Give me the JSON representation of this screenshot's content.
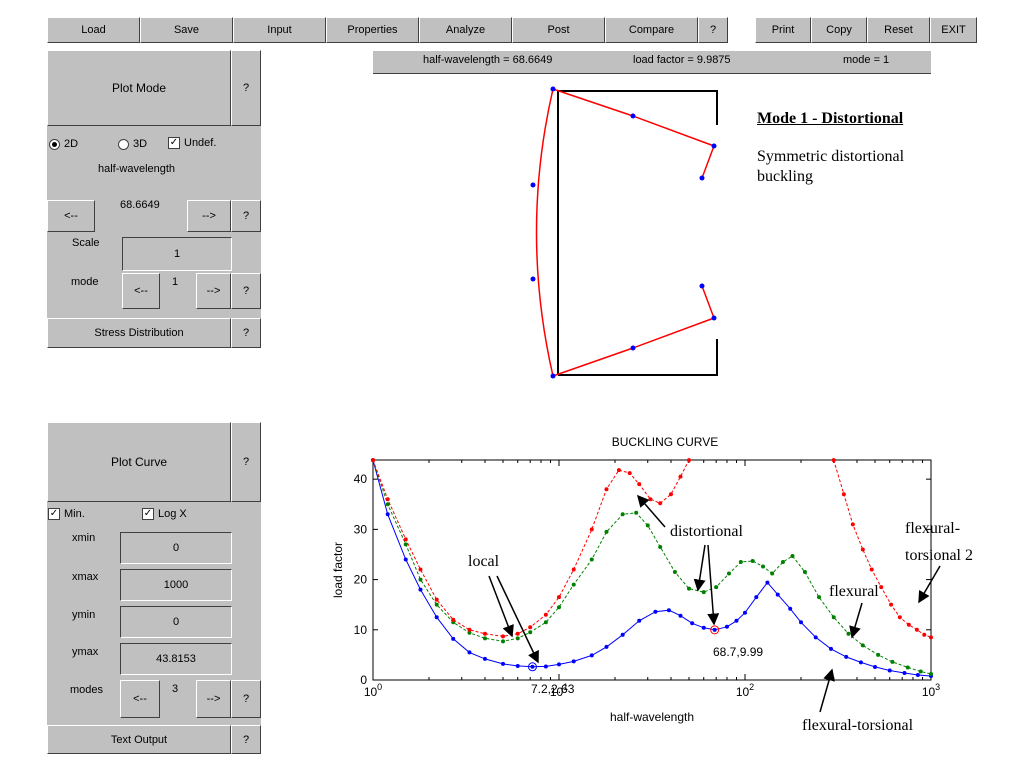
{
  "toolbar": {
    "load": "Load",
    "save": "Save",
    "input": "Input",
    "properties": "Properties",
    "analyze": "Analyze",
    "post": "Post",
    "compare": "Compare",
    "help": "?",
    "print": "Print",
    "copy": "Copy",
    "reset": "Reset",
    "exit": "EXIT"
  },
  "status": {
    "half_wavelength": "half-wavelength = 68.6649",
    "load_factor": "load factor = 9.9875",
    "mode": "mode = 1"
  },
  "plot_mode_panel": {
    "title": "Plot Mode",
    "help": "?",
    "radio_2d": "2D",
    "radio_3d": "3D",
    "undef_label": "Undef.",
    "undef_checked": true,
    "hw_label": "half-wavelength",
    "hw_value": "68.6649",
    "prev": "<--",
    "next": "-->",
    "scale_label": "Scale",
    "scale_value": "1",
    "mode_label": "mode",
    "mode_value": "1",
    "stress_button": "Stress Distribution"
  },
  "plot_curve_panel": {
    "title": "Plot Curve",
    "help": "?",
    "min_label": "Min.",
    "logx_label": "Log X",
    "xmin_label": "xmin",
    "xmin_value": "0",
    "xmax_label": "xmax",
    "xmax_value": "1000",
    "ymin_label": "ymin",
    "ymin_value": "0",
    "ymax_label": "ymax",
    "ymax_value": "43.8153",
    "modes_label": "modes",
    "modes_value": "3",
    "prev": "<--",
    "next": "-->",
    "text_output": "Text Output"
  },
  "mode_shape": {
    "title": "Mode 1 - Distortional",
    "description_line1": "Symmetric distortional",
    "description_line2": "buckling"
  },
  "annotations": {
    "local": "local",
    "distortional": "distortional",
    "flexural": "flexural",
    "flexural_torsional_2_line1": "flexural-",
    "flexural_torsional_2_line2": "torsional 2",
    "flexural_torsional": "flexural-torsional",
    "point_label_min": "7.2,2.63",
    "point_label_sel": "68.7,9.99"
  },
  "colors": {
    "panel": "#c0c0c0",
    "red": "#ff0000",
    "green": "#008000",
    "blue": "#0000ff"
  },
  "chart_data": {
    "type": "line",
    "title": "BUCKLING CURVE",
    "xlabel": "half-wavelength",
    "ylabel": "load factor",
    "xscale": "log",
    "xlim": [
      1,
      1000
    ],
    "ylim": [
      0,
      43.8153
    ],
    "x_ticks": [
      "10^0",
      "10^1",
      "10^2",
      "10^3"
    ],
    "y_ticks": [
      0,
      10,
      20,
      30,
      40
    ],
    "series": [
      {
        "color": "#0000ff",
        "style": "solid",
        "x": [
          1,
          1.2,
          1.5,
          1.8,
          2.2,
          2.7,
          3.3,
          4,
          5,
          6,
          7.2,
          8.5,
          10,
          12,
          15,
          18,
          22,
          27,
          33,
          39,
          45,
          52,
          60,
          68.7,
          80,
          90,
          100,
          115,
          132,
          150,
          175,
          200,
          240,
          290,
          350,
          420,
          500,
          600,
          720,
          850,
          1000
        ],
        "y": [
          43.8,
          33,
          24,
          18,
          12.5,
          8.2,
          5.5,
          4.2,
          3.2,
          2.8,
          2.63,
          2.7,
          3.1,
          3.7,
          4.9,
          6.6,
          9.0,
          11.8,
          13.6,
          13.9,
          12.8,
          11.3,
          10.4,
          9.99,
          10.6,
          11.8,
          13.4,
          16.5,
          19.4,
          17.0,
          14.2,
          11.5,
          8.5,
          6.2,
          4.6,
          3.5,
          2.6,
          1.9,
          1.4,
          1.0,
          0.8
        ]
      },
      {
        "color": "#008000",
        "style": "dashed",
        "x": [
          1,
          1.2,
          1.5,
          1.8,
          2.2,
          2.7,
          3.3,
          4,
          5,
          6,
          7,
          8.5,
          10,
          12,
          15,
          18,
          22,
          26,
          30,
          35,
          42,
          50,
          60,
          70,
          82,
          95,
          110,
          125,
          140,
          160,
          180,
          210,
          250,
          300,
          360,
          430,
          520,
          620,
          750,
          880,
          1000
        ],
        "y": [
          43.8,
          35,
          27,
          20,
          15,
          11.5,
          9.4,
          8.3,
          7.7,
          8.3,
          9.5,
          11.5,
          14.5,
          19,
          24,
          29.5,
          33,
          33.3,
          30.8,
          26.5,
          21.5,
          18.2,
          17.5,
          18.5,
          21.2,
          23.5,
          23.7,
          22.6,
          21.2,
          23.5,
          24.7,
          21.5,
          16.5,
          12.5,
          9.2,
          6.9,
          5.0,
          3.6,
          2.5,
          1.7,
          1.2
        ]
      },
      {
        "color": "#ff0000",
        "style": "dashed",
        "x": [
          1,
          1.2,
          1.5,
          1.8,
          2.2,
          2.7,
          3.3,
          4,
          5,
          6,
          7,
          8.5,
          10,
          12,
          15,
          18,
          21,
          24,
          27,
          31,
          35,
          40,
          45,
          50
        ],
        "y": [
          43.8,
          36,
          28,
          22,
          16,
          12,
          10,
          9.2,
          8.7,
          9.2,
          10.5,
          13,
          16.5,
          22,
          30,
          38,
          41.8,
          41.2,
          39,
          36,
          35.2,
          37,
          40.5,
          43.8
        ]
      },
      {
        "color": "#ff0000",
        "style": "dashed",
        "x": [
          300,
          340,
          380,
          430,
          480,
          540,
          610,
          680,
          760,
          840,
          920,
          1000
        ],
        "y": [
          43.8,
          37,
          31,
          26,
          22,
          18.5,
          15,
          12.5,
          11,
          10,
          9,
          8.5
        ]
      }
    ],
    "markers": [
      {
        "x": 7.2,
        "y": 2.63,
        "color": "#0000ff",
        "label": "7.2,2.63"
      },
      {
        "x": 68.7,
        "y": 9.99,
        "color": "#ff0000",
        "label": "68.7,9.99"
      }
    ]
  }
}
